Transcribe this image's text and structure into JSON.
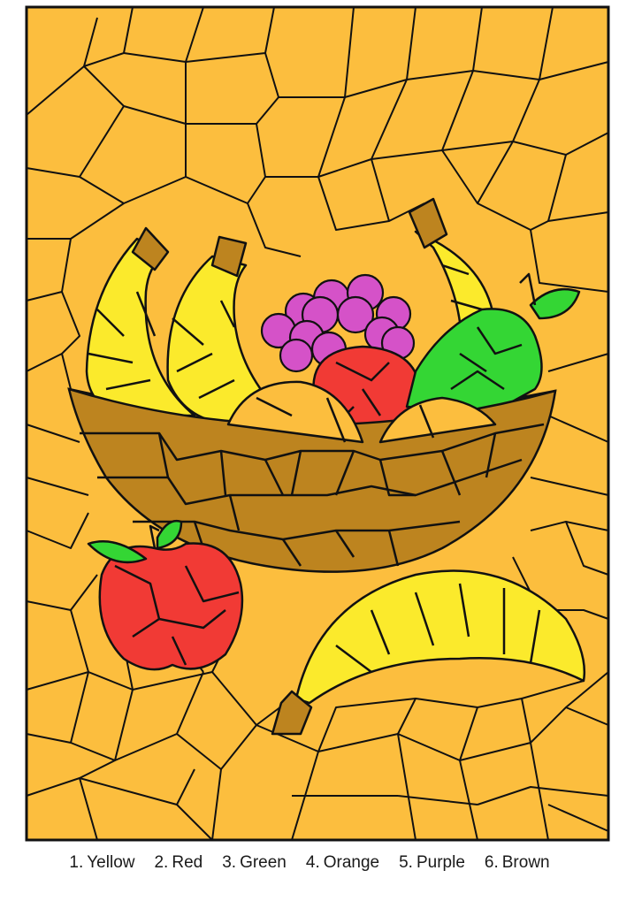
{
  "palette": {
    "background": "#FCBE3E",
    "yellow": "#FBEA2C",
    "red": "#F13A35",
    "green": "#34D634",
    "purple": "#D552C8",
    "brown": "#BD841F",
    "outline": "#111111"
  },
  "legend": [
    {
      "number": "1.",
      "name": "Yellow"
    },
    {
      "number": "2.",
      "name": "Red"
    },
    {
      "number": "3.",
      "name": "Green"
    },
    {
      "number": "4.",
      "name": "Orange"
    },
    {
      "number": "5.",
      "name": "Purple"
    },
    {
      "number": "6.",
      "name": "Brown"
    }
  ],
  "picture": {
    "subject_icons": [
      "banana-bunch-icon",
      "grape-cluster-icon",
      "pear-icon",
      "apple-icon",
      "basket-icon",
      "single-banana-icon"
    ]
  }
}
